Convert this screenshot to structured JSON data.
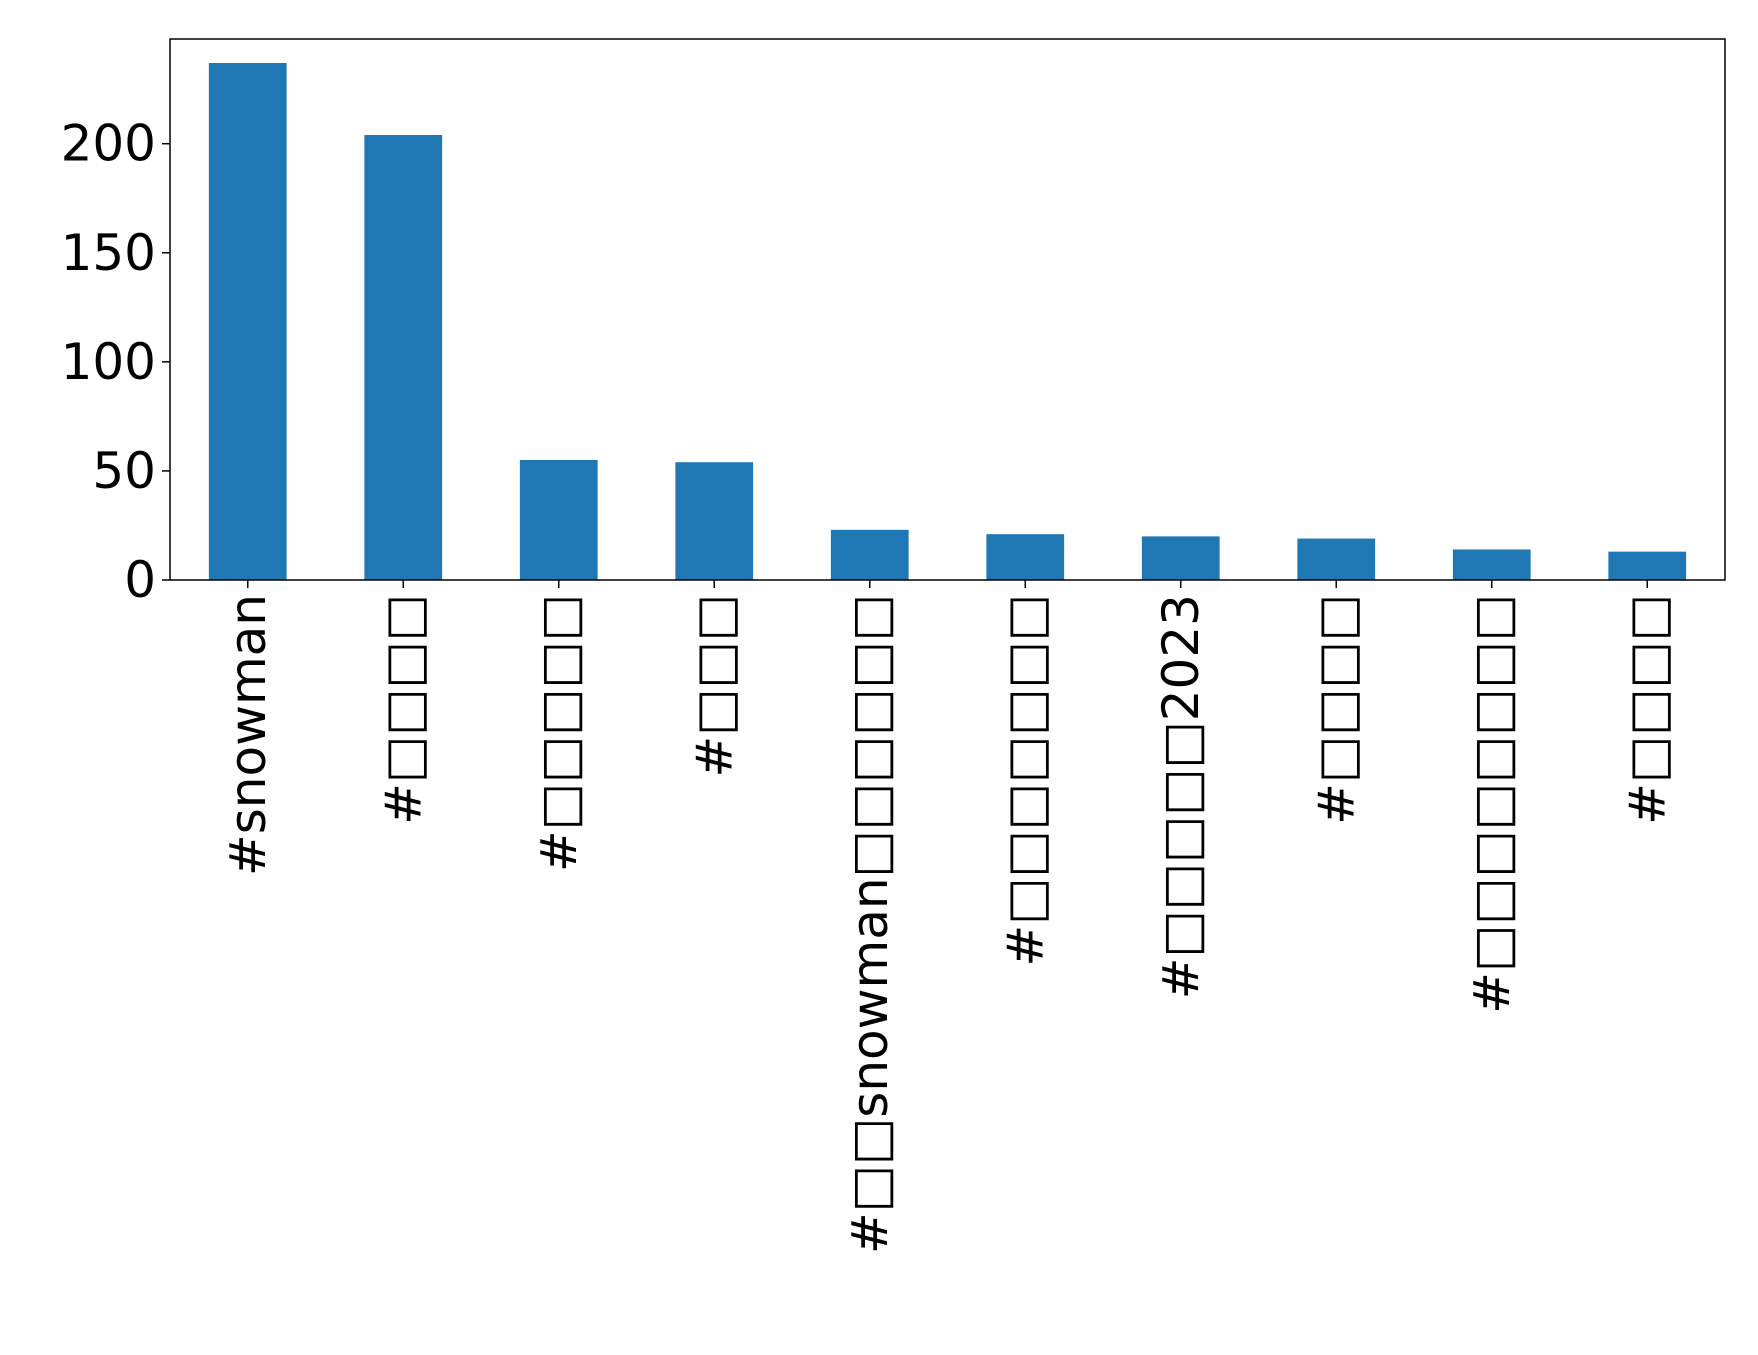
{
  "chart_data": {
    "type": "bar",
    "categories": [
      "#snowman",
      "#□□□□",
      "#□□□□□",
      "#□□□",
      "#□□snowman□□□□□□",
      "#□□□□□□□",
      "#□□□□□2023",
      "#□□□□",
      "#□□□□□□□□",
      "#□□□□"
    ],
    "values": [
      237,
      204,
      55,
      54,
      23,
      21,
      20,
      19,
      14,
      13
    ],
    "ylim": [
      0,
      248
    ],
    "yticks": [
      0,
      50,
      100,
      150,
      200
    ],
    "title": "",
    "xlabel": "",
    "ylabel": "",
    "bar_color": "#1f77b4",
    "grid": false
  }
}
